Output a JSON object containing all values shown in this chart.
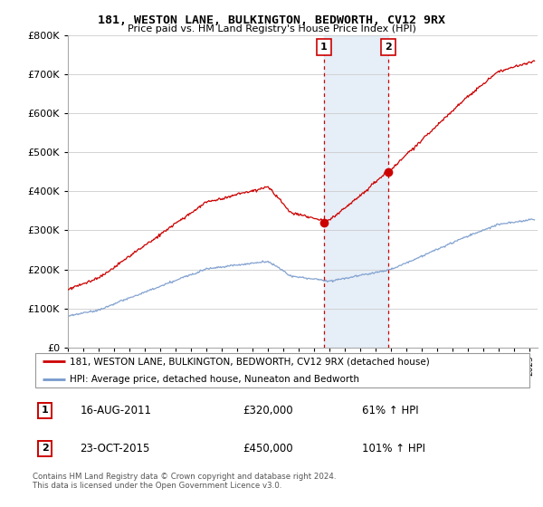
{
  "title": "181, WESTON LANE, BULKINGTON, BEDWORTH, CV12 9RX",
  "subtitle": "Price paid vs. HM Land Registry's House Price Index (HPI)",
  "background_color": "#ffffff",
  "grid_color": "#cccccc",
  "red_line_color": "#cc0000",
  "blue_line_color": "#7799cc",
  "transaction1": {
    "year": 2011.62,
    "price": 320000,
    "label": "1"
  },
  "transaction2": {
    "year": 2015.81,
    "price": 450000,
    "label": "2"
  },
  "shade_color": "#dce8f5",
  "legend_entries": [
    "181, WESTON LANE, BULKINGTON, BEDWORTH, CV12 9RX (detached house)",
    "HPI: Average price, detached house, Nuneaton and Bedworth"
  ],
  "annotation_rows": [
    {
      "num": "1",
      "date": "16-AUG-2011",
      "price": "£320,000",
      "pct": "61% ↑ HPI"
    },
    {
      "num": "2",
      "date": "23-OCT-2015",
      "price": "£450,000",
      "pct": "101% ↑ HPI"
    }
  ],
  "footer": "Contains HM Land Registry data © Crown copyright and database right 2024.\nThis data is licensed under the Open Government Licence v3.0.",
  "ylim": [
    0,
    800000
  ],
  "xlim_start": 1995,
  "xlim_end": 2025.5
}
